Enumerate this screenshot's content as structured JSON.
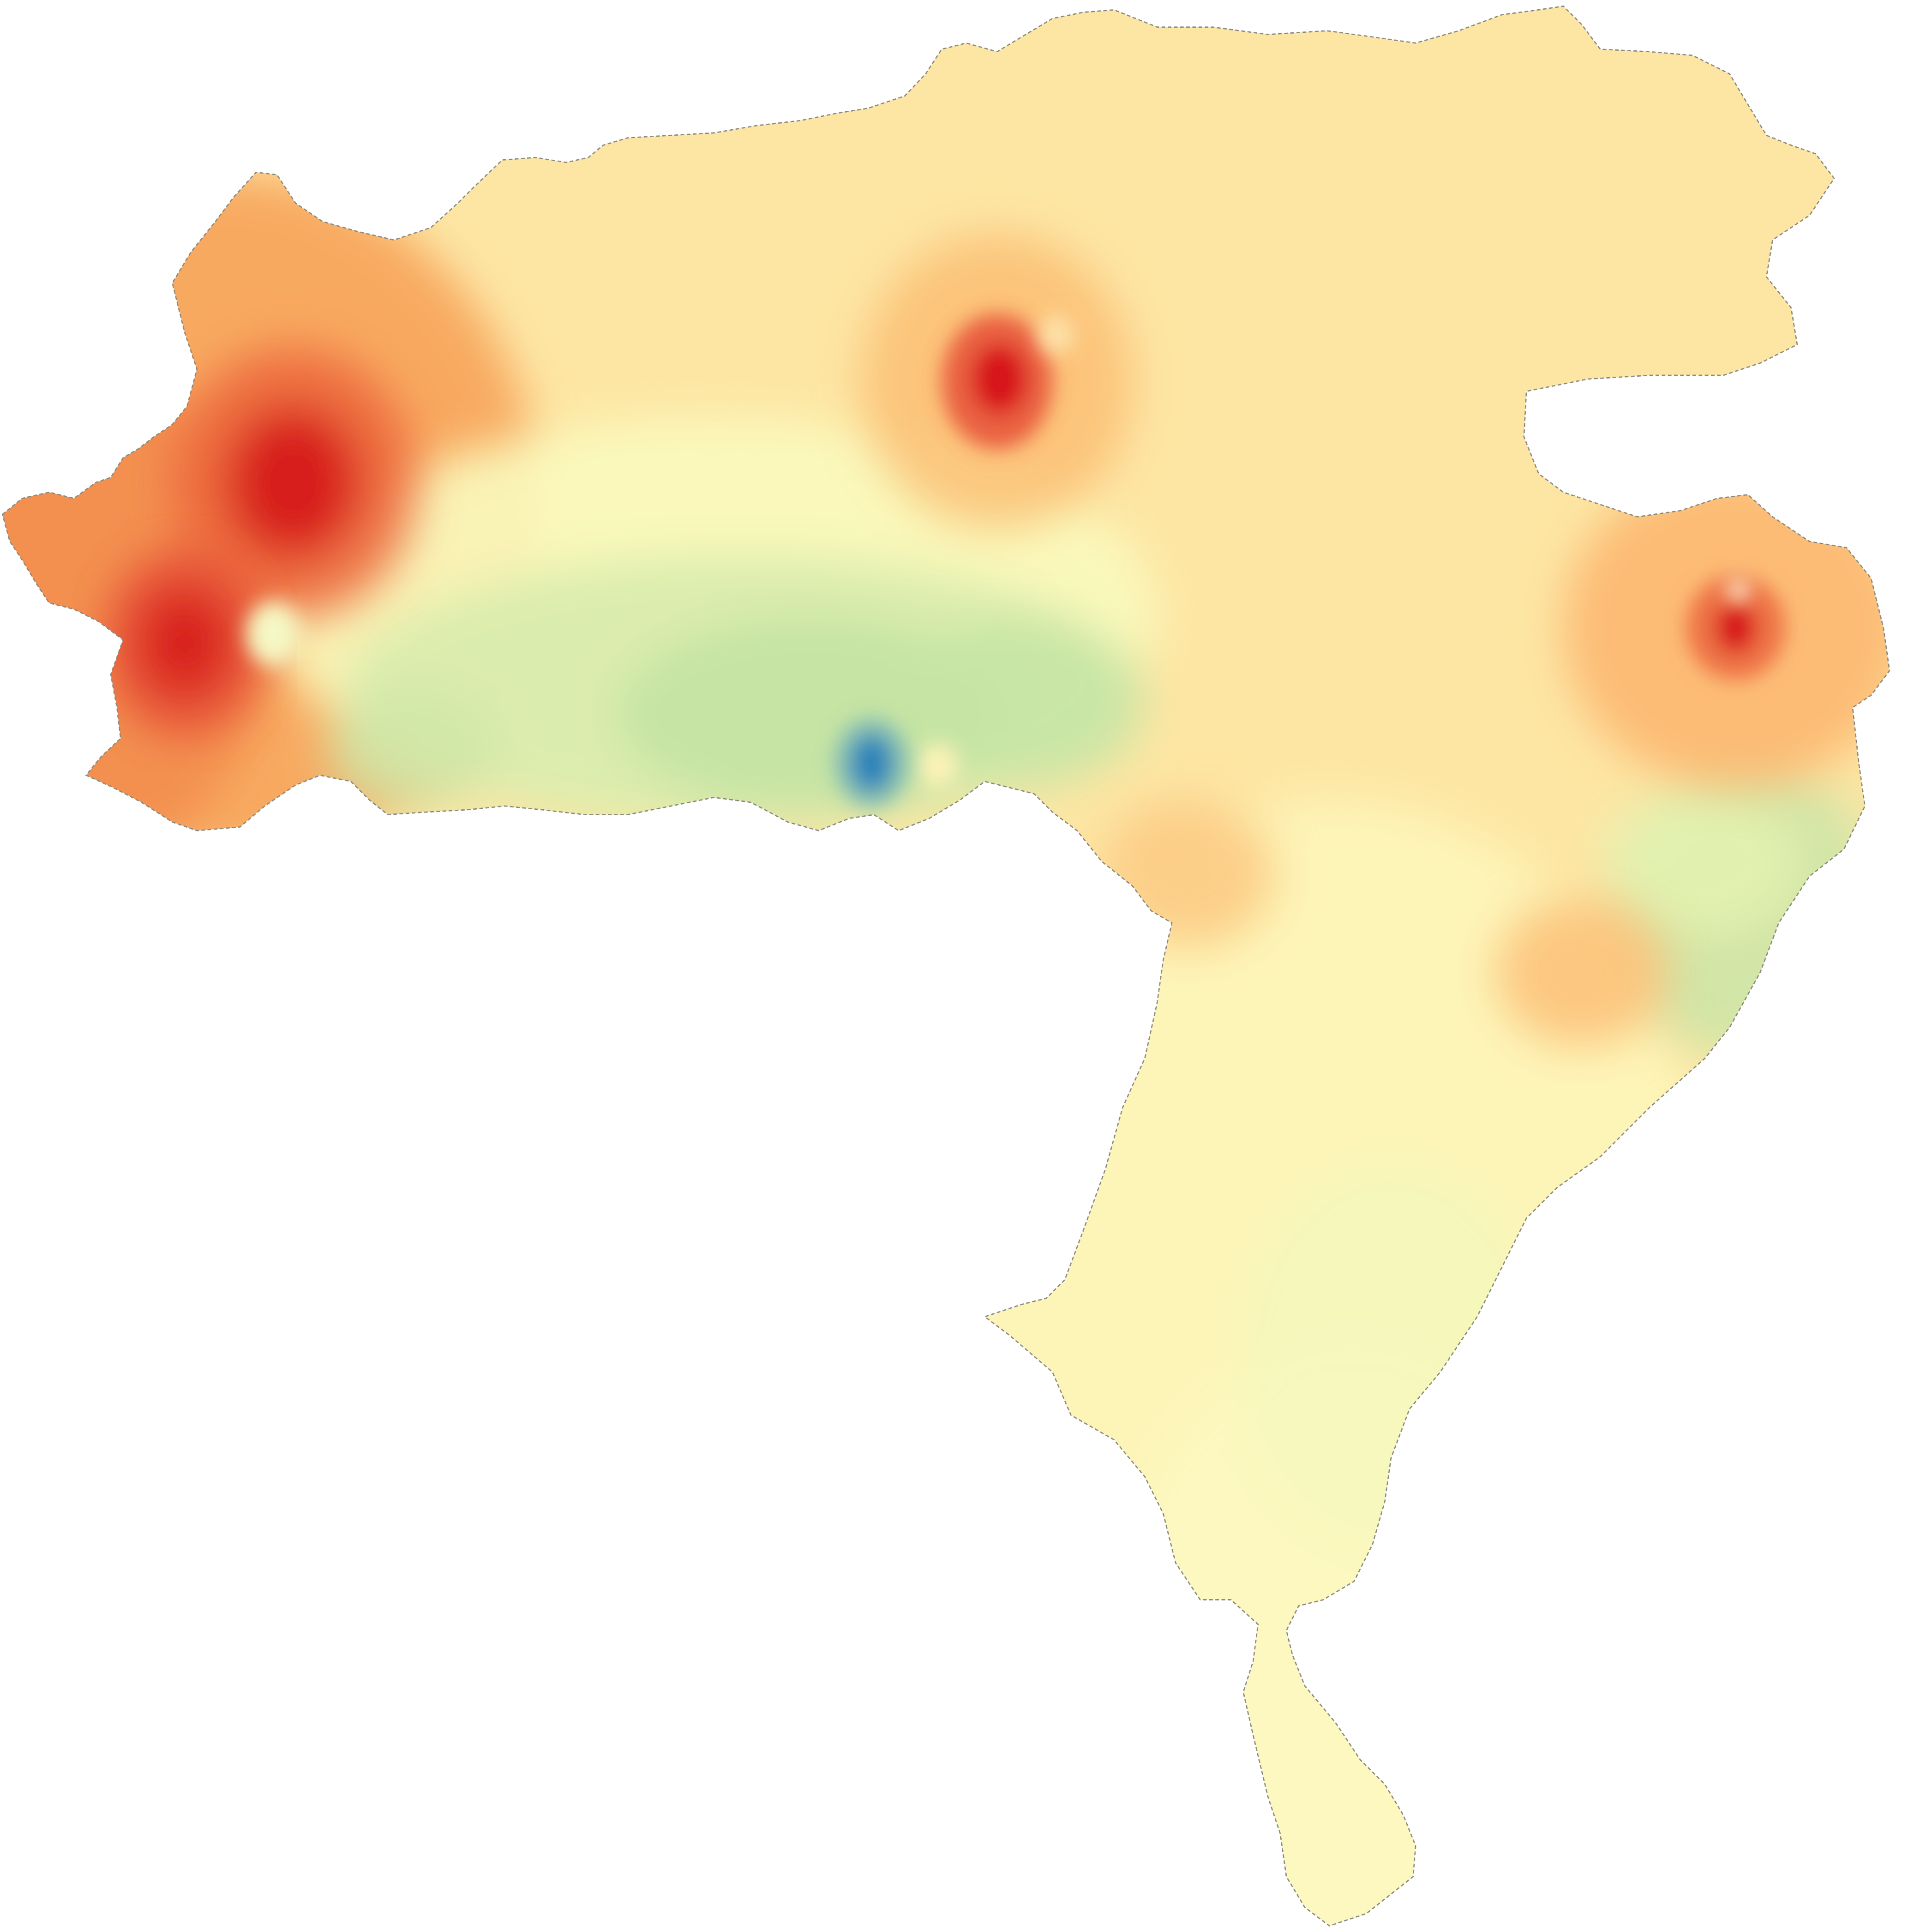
{
  "map": {
    "type": "interpolated-raster",
    "background_color": "#ffffff",
    "boundary_color": "#8a8a80",
    "color_ramp": [
      "#2b83ba",
      "#abdda4",
      "#ffffbf",
      "#fdae61",
      "#d7191c"
    ],
    "base_value": 0.5,
    "hotspots": [
      {
        "name": "northwest-hotspot",
        "value": 1.0,
        "color": "#d7191c"
      },
      {
        "name": "west-hotspot",
        "value": 1.0,
        "color": "#d7191c"
      },
      {
        "name": "north-central-hotspot",
        "value": 1.0,
        "color": "#d7191c"
      },
      {
        "name": "east-hotspot",
        "value": 1.0,
        "color": "#d7191c"
      },
      {
        "name": "south-central-lowspot",
        "value": 0.0,
        "color": "#2b83ba"
      }
    ]
  }
}
